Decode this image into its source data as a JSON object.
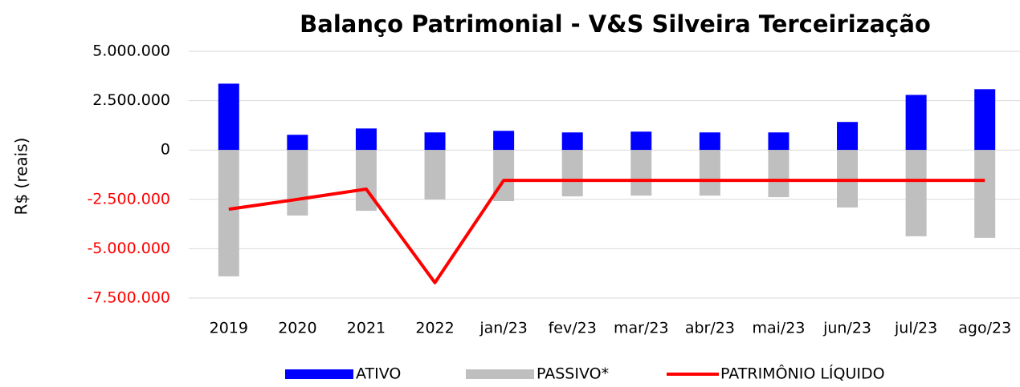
{
  "chart_data": {
    "type": "bar-line",
    "title": "Balanço Patrimonial - V&S Silveira Terceirização",
    "y_label": "R$ (reais)",
    "categories": [
      "2019",
      "2020",
      "2021",
      "2022",
      "jan/23",
      "fev/23",
      "mar/23",
      "abr/23",
      "mai/23",
      "jun/23",
      "jul/23",
      "ago/23"
    ],
    "series": [
      {
        "name": "ATIVO",
        "type": "bar",
        "color": "#0000ff",
        "values": [
          3360000,
          770000,
          1090000,
          890000,
          970000,
          890000,
          930000,
          890000,
          890000,
          1420000,
          2790000,
          3080000
        ]
      },
      {
        "name": "PASSIVO*",
        "type": "bar",
        "color": "#bfbfbf",
        "values": [
          -6400000,
          -3320000,
          -3080000,
          -2510000,
          -2590000,
          -2350000,
          -2310000,
          -2310000,
          -2390000,
          -2910000,
          -4370000,
          -4450000
        ]
      },
      {
        "name": "PATRIMÔNIO LÍQUIDO",
        "type": "line",
        "color": "#ff0000",
        "values": [
          -3000000,
          -2500000,
          -1980000,
          -6720000,
          -1540000,
          -1540000,
          -1540000,
          -1540000,
          -1540000,
          -1540000,
          -1540000,
          -1540000
        ]
      }
    ],
    "ylim": [
      -7500000,
      5000000
    ],
    "yticks": [
      {
        "value": -7500000,
        "label": "-7.500.000"
      },
      {
        "value": -5000000,
        "label": "-5.000.000"
      },
      {
        "value": -2500000,
        "label": "-2.500.000"
      },
      0,
      {
        "value": 2500000,
        "label": "2.500.000"
      },
      {
        "value": 5000000,
        "label": "5.000.000"
      }
    ],
    "negative_tick_color": "#ff0000",
    "grid": true,
    "legend": "bottom"
  }
}
